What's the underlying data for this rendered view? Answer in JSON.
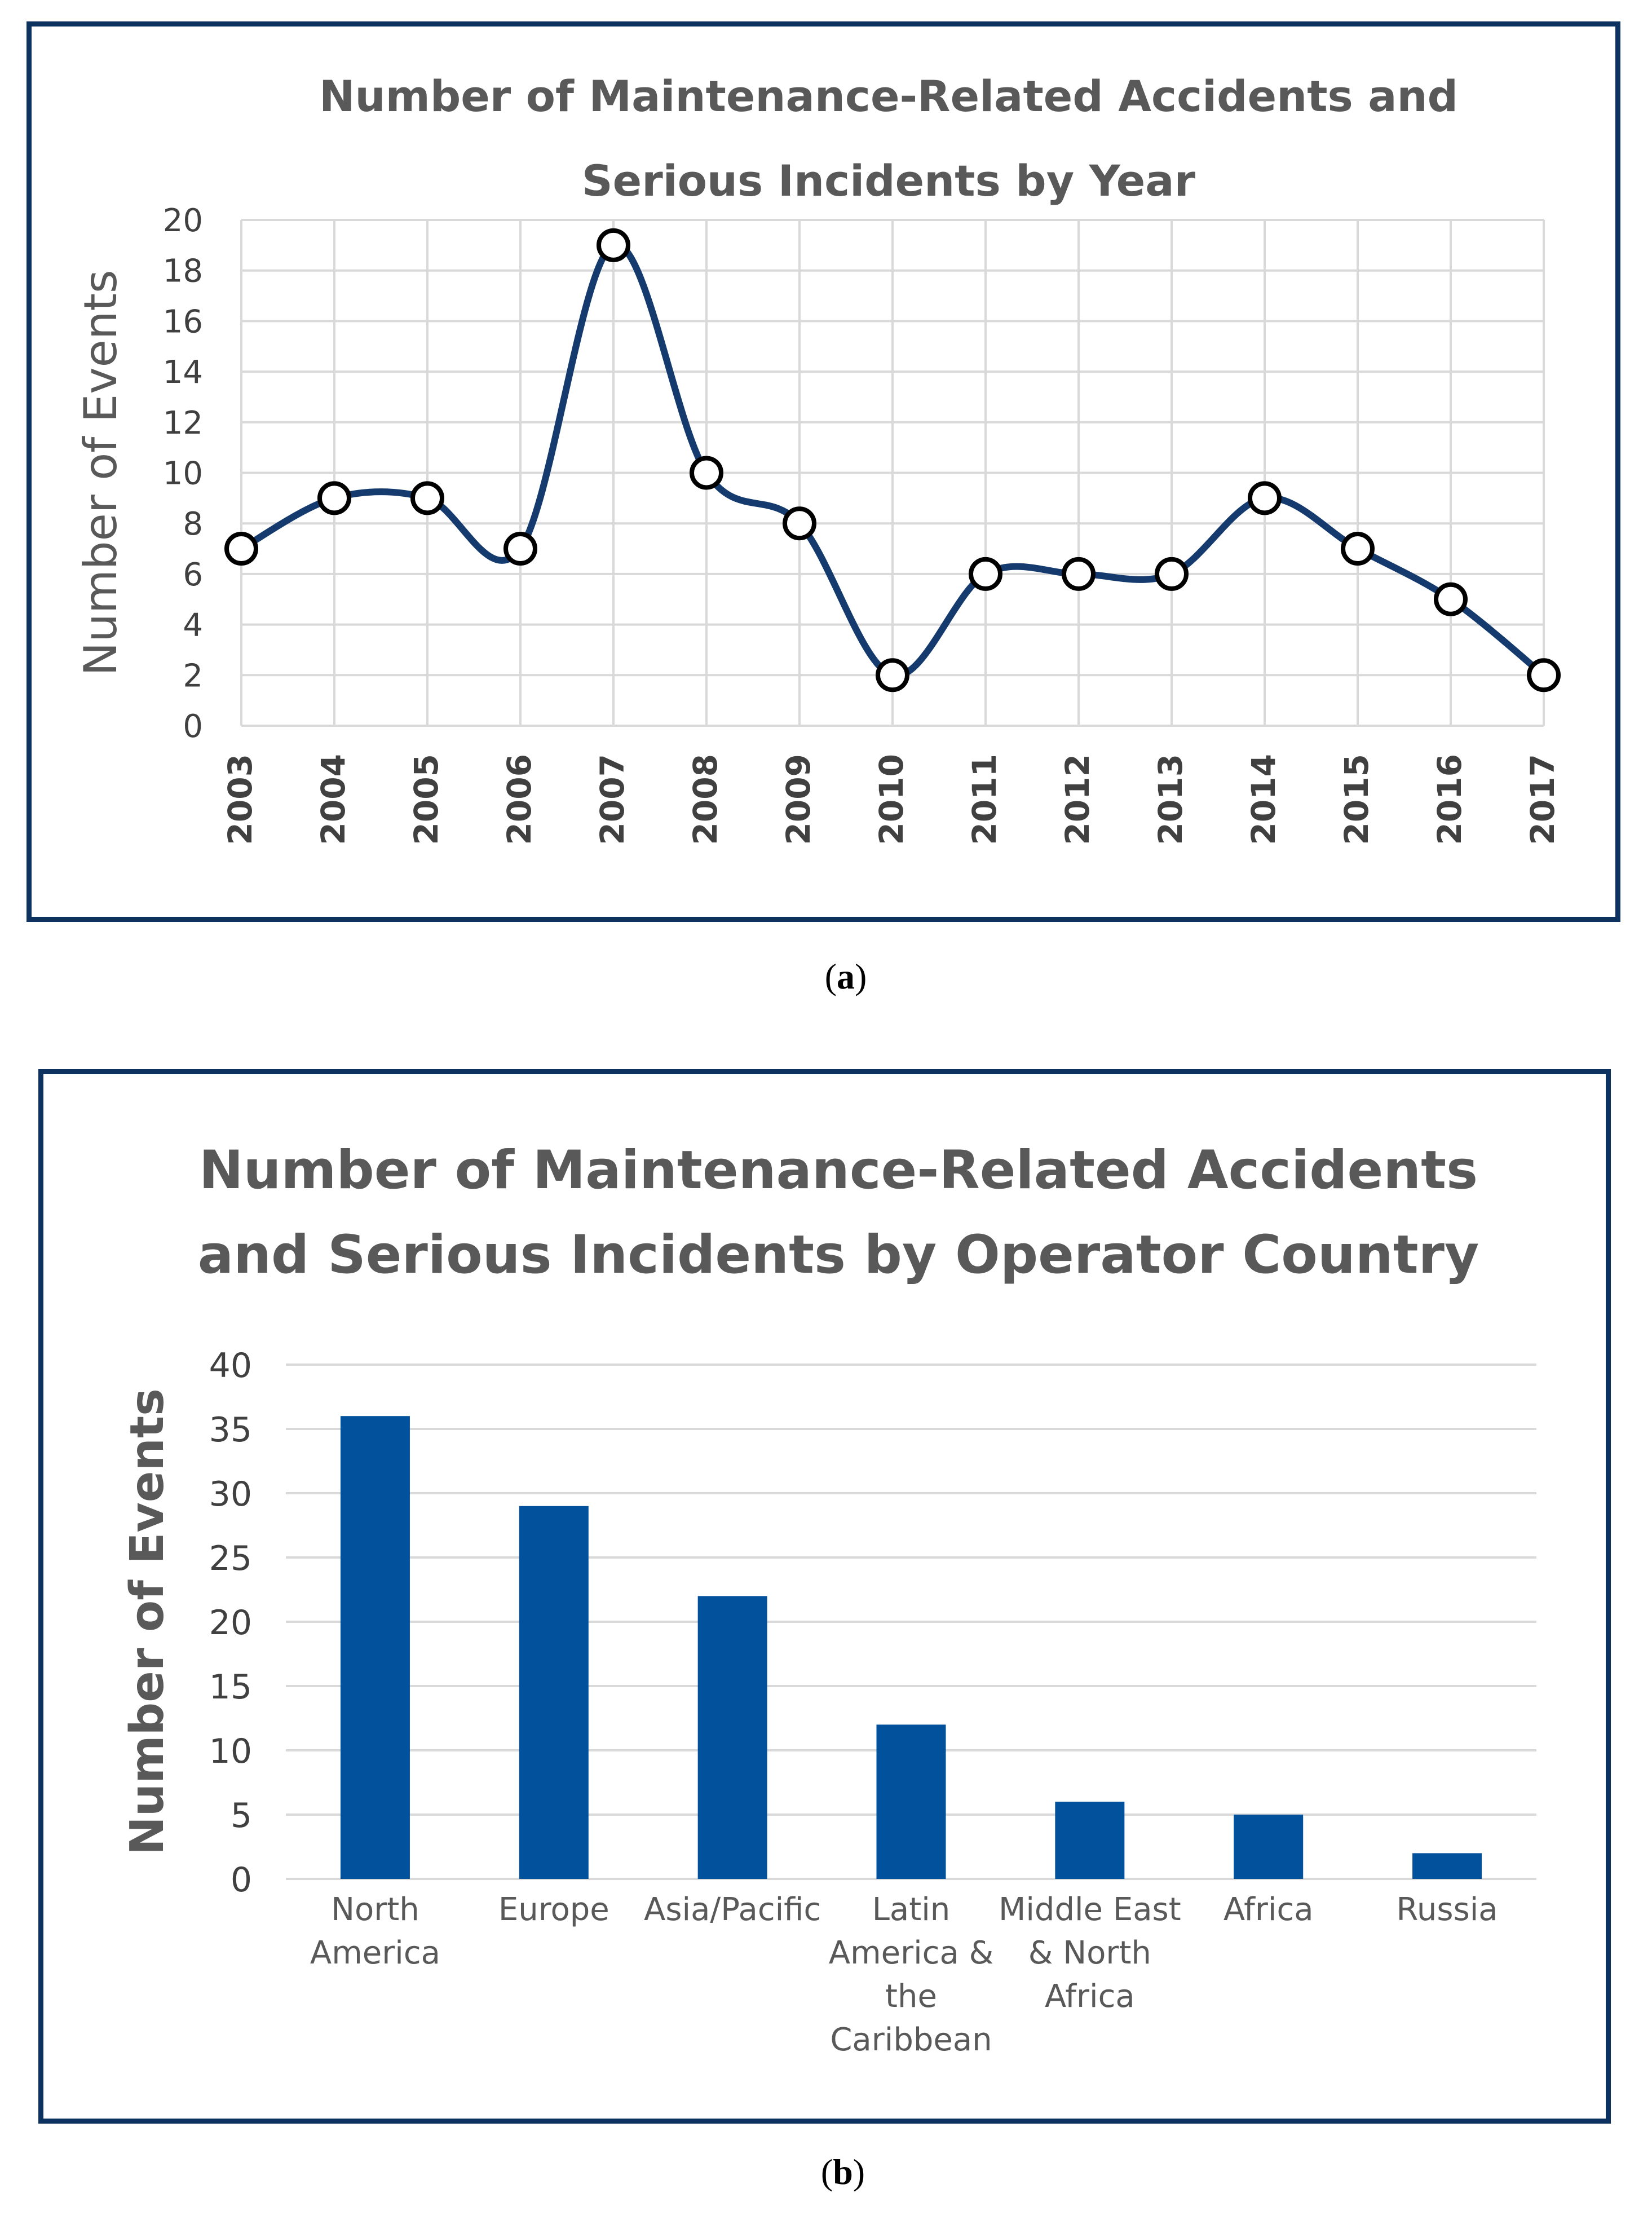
{
  "colors": {
    "frame": "#0d3260",
    "line": "#143a6e",
    "bar": "#02519c",
    "grid": "#d9d9d9",
    "text": "#595959"
  },
  "captions": {
    "a": "a",
    "b": "b"
  },
  "chart_data": [
    {
      "type": "line",
      "title_lines": [
        "Number of Maintenance-Related Accidents and",
        "Serious Incidents by Year"
      ],
      "xlabel": "",
      "ylabel": "Number of Events",
      "ylim": [
        0,
        20
      ],
      "yticks": [
        0,
        2,
        4,
        6,
        8,
        10,
        12,
        14,
        16,
        18,
        20
      ],
      "grid": true,
      "smooth": true,
      "markers": "circle-open",
      "x": [
        "2003",
        "2004",
        "2005",
        "2006",
        "2007",
        "2008",
        "2009",
        "2010",
        "2011",
        "2012",
        "2013",
        "2014",
        "2015",
        "2016",
        "2017"
      ],
      "series": [
        {
          "name": "Events",
          "values": [
            7,
            9,
            9,
            7,
            19,
            10,
            8,
            2,
            6,
            6,
            6,
            9,
            7,
            5,
            2
          ]
        }
      ]
    },
    {
      "type": "bar",
      "title_lines": [
        "Number of Maintenance-Related Accidents",
        "and Serious Incidents by Operator Country"
      ],
      "xlabel": "",
      "ylabel": "Number of Events",
      "ylim": [
        0,
        40
      ],
      "yticks": [
        0,
        5,
        10,
        15,
        20,
        25,
        30,
        35,
        40
      ],
      "grid": true,
      "categories": [
        [
          "North",
          "America"
        ],
        [
          "Europe"
        ],
        [
          "Asia/Pacific"
        ],
        [
          "Latin",
          "America &",
          "the",
          "Caribbean"
        ],
        [
          "Middle East",
          "& North",
          "Africa"
        ],
        [
          "Africa"
        ],
        [
          "Russia"
        ]
      ],
      "values": [
        36,
        29,
        22,
        12,
        6,
        5,
        2
      ]
    }
  ]
}
